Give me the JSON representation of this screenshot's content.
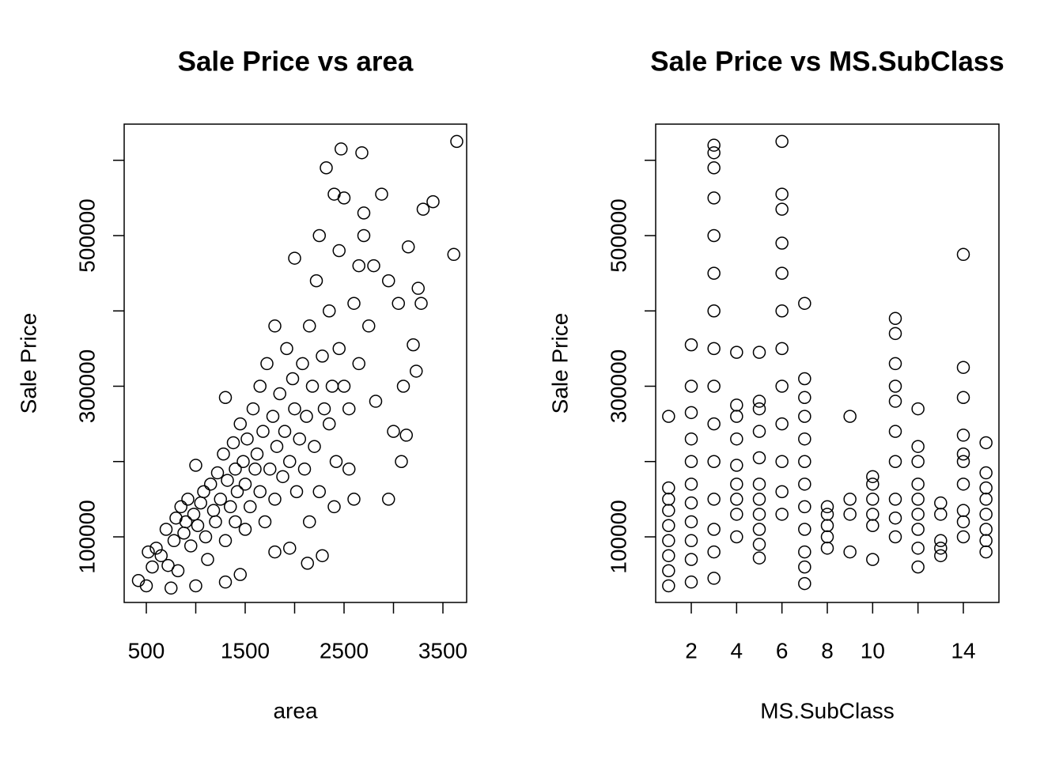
{
  "chart_data": [
    {
      "type": "scatter",
      "title": "Sale Price vs area",
      "x_label": "area",
      "y_label": "Sale Price",
      "xlim": [
        276,
        3740
      ],
      "ylim": [
        12900,
        648000
      ],
      "xticks": [
        500,
        {
          "value": 1000,
          "label": null
        },
        1500,
        {
          "value": 2000,
          "label": null
        },
        2500,
        {
          "value": 3000,
          "label": null
        },
        3500
      ],
      "yticks": [
        100000,
        {
          "value": 200000,
          "label": null
        },
        300000,
        {
          "value": 400000,
          "label": null
        },
        500000,
        {
          "value": 600000,
          "label": null
        }
      ],
      "color": "#000000",
      "x": [
        420,
        500,
        520,
        560,
        600,
        650,
        700,
        720,
        750,
        780,
        800,
        820,
        850,
        880,
        900,
        920,
        950,
        980,
        1000,
        1000,
        1020,
        1050,
        1080,
        1100,
        1120,
        1150,
        1180,
        1200,
        1220,
        1250,
        1280,
        1300,
        1300,
        1320,
        1350,
        1380,
        1400,
        1400,
        1420,
        1450,
        1480,
        1500,
        1500,
        1520,
        1550,
        1580,
        1600,
        1620,
        1650,
        1650,
        1680,
        1700,
        1720,
        1750,
        1780,
        1800,
        1800,
        1820,
        1850,
        1880,
        1900,
        1920,
        1950,
        1980,
        2000,
        2000,
        2020,
        2050,
        2080,
        2100,
        2120,
        2150,
        2150,
        2180,
        2200,
        2220,
        2250,
        2250,
        2280,
        2300,
        2320,
        2350,
        2350,
        2380,
        2400,
        2420,
        2450,
        2450,
        2470,
        2500,
        2500,
        2550,
        2550,
        2600,
        2600,
        2650,
        2650,
        2680,
        2700,
        2700,
        2750,
        2800,
        2820,
        2880,
        2950,
        2950,
        3000,
        3050,
        3080,
        3100,
        3130,
        3150,
        3200,
        3230,
        3250,
        3280,
        3300,
        3400,
        3610,
        3640,
        2130,
        2400,
        1300,
        1450,
        1800,
        1950,
        2280
      ],
      "values": [
        42000,
        35000,
        80000,
        60000,
        85000,
        75000,
        110000,
        62000,
        32000,
        95000,
        125000,
        55000,
        140000,
        105000,
        120000,
        150000,
        88000,
        130000,
        35000,
        195000,
        115000,
        145000,
        160000,
        100000,
        70000,
        170000,
        135000,
        120000,
        185000,
        150000,
        210000,
        95000,
        285000,
        175000,
        140000,
        225000,
        190000,
        120000,
        160000,
        250000,
        200000,
        110000,
        170000,
        230000,
        140000,
        270000,
        190000,
        210000,
        160000,
        300000,
        240000,
        120000,
        330000,
        190000,
        260000,
        150000,
        380000,
        220000,
        290000,
        180000,
        240000,
        350000,
        200000,
        310000,
        270000,
        470000,
        160000,
        230000,
        330000,
        190000,
        260000,
        120000,
        380000,
        300000,
        220000,
        440000,
        500000,
        160000,
        340000,
        270000,
        590000,
        250000,
        400000,
        300000,
        555000,
        200000,
        480000,
        350000,
        615000,
        550000,
        300000,
        270000,
        190000,
        410000,
        150000,
        460000,
        330000,
        610000,
        530000,
        500000,
        380000,
        460000,
        280000,
        555000,
        440000,
        150000,
        240000,
        410000,
        200000,
        300000,
        235000,
        485000,
        355000,
        320000,
        430000,
        410000,
        535000,
        545000,
        475000,
        625000,
        65000,
        140000,
        40000,
        50000,
        80000,
        85000,
        75000
      ]
    },
    {
      "type": "scatter",
      "title": "Sale Price vs MS.SubClass",
      "x_label": "MS.SubClass",
      "y_label": "Sale Price",
      "xlim": [
        0.43,
        15.57
      ],
      "ylim": [
        12900,
        648000
      ],
      "xticks": [
        2,
        4,
        6,
        8,
        10,
        {
          "value": 12,
          "label": null
        },
        14
      ],
      "yticks": [
        100000,
        {
          "value": 200000,
          "label": null
        },
        300000,
        {
          "value": 400000,
          "label": null
        },
        500000,
        {
          "value": 600000,
          "label": null
        }
      ],
      "color": "#000000",
      "x": [
        1,
        1,
        1,
        1,
        1,
        1,
        1,
        1,
        1,
        2,
        2,
        2,
        2,
        2,
        2,
        2,
        2,
        2,
        2,
        2,
        3,
        3,
        3,
        3,
        3,
        3,
        3,
        3,
        3,
        3,
        3,
        3,
        3,
        3,
        3,
        4,
        4,
        4,
        4,
        4,
        4,
        4,
        4,
        4,
        5,
        5,
        5,
        5,
        5,
        5,
        5,
        5,
        5,
        5,
        5,
        6,
        6,
        6,
        6,
        6,
        6,
        6,
        6,
        6,
        6,
        6,
        6,
        7,
        7,
        7,
        7,
        7,
        7,
        7,
        7,
        7,
        7,
        7,
        7,
        8,
        8,
        8,
        8,
        8,
        9,
        9,
        9,
        9,
        10,
        10,
        10,
        10,
        10,
        10,
        11,
        11,
        11,
        11,
        11,
        11,
        11,
        11,
        11,
        11,
        12,
        12,
        12,
        12,
        12,
        12,
        12,
        12,
        12,
        13,
        13,
        13,
        13,
        13,
        14,
        14,
        14,
        14,
        14,
        14,
        14,
        14,
        14,
        14,
        15,
        15,
        15,
        15,
        15,
        15,
        15,
        15
      ],
      "values": [
        35000,
        55000,
        75000,
        95000,
        115000,
        135000,
        150000,
        165000,
        260000,
        40000,
        70000,
        95000,
        120000,
        145000,
        170000,
        200000,
        230000,
        265000,
        300000,
        355000,
        45000,
        80000,
        110000,
        150000,
        200000,
        250000,
        300000,
        350000,
        400000,
        450000,
        500000,
        550000,
        590000,
        610000,
        620000,
        100000,
        130000,
        150000,
        170000,
        195000,
        230000,
        260000,
        275000,
        345000,
        72000,
        90000,
        110000,
        130000,
        150000,
        170000,
        205000,
        240000,
        270000,
        280000,
        345000,
        130000,
        160000,
        200000,
        250000,
        300000,
        350000,
        400000,
        450000,
        490000,
        535000,
        555000,
        625000,
        38000,
        60000,
        80000,
        110000,
        140000,
        170000,
        200000,
        230000,
        260000,
        285000,
        310000,
        410000,
        85000,
        100000,
        115000,
        130000,
        140000,
        80000,
        130000,
        150000,
        260000,
        70000,
        115000,
        130000,
        150000,
        170000,
        180000,
        100000,
        125000,
        150000,
        200000,
        240000,
        280000,
        300000,
        330000,
        370000,
        390000,
        60000,
        85000,
        110000,
        130000,
        150000,
        170000,
        200000,
        220000,
        270000,
        75000,
        85000,
        95000,
        130000,
        145000,
        100000,
        120000,
        135000,
        170000,
        200000,
        210000,
        235000,
        285000,
        325000,
        475000,
        80000,
        95000,
        110000,
        130000,
        150000,
        165000,
        185000,
        225000
      ]
    }
  ]
}
